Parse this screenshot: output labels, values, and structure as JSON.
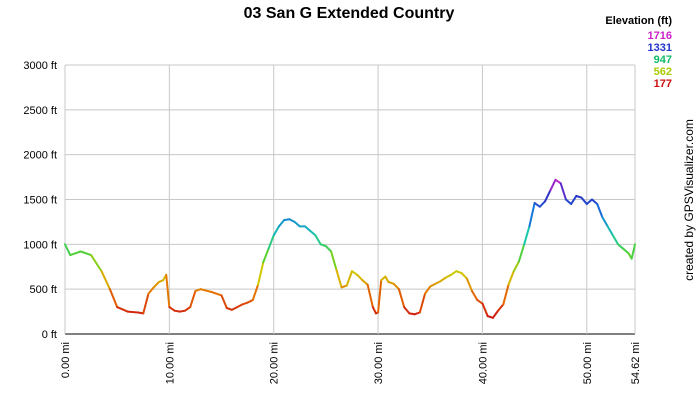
{
  "chart_data": {
    "type": "line",
    "title": "03 San G Extended Country",
    "xlabel": "",
    "ylabel": "",
    "xlim": [
      0,
      54.62
    ],
    "ylim": [
      0,
      3000
    ],
    "grid": true,
    "x_ticks": [
      {
        "value": 0,
        "label": "0.00 mi"
      },
      {
        "value": 10,
        "label": "10.00 mi"
      },
      {
        "value": 20,
        "label": "20.00 mi"
      },
      {
        "value": 30,
        "label": "30.00 mi"
      },
      {
        "value": 40,
        "label": "40.00 mi"
      },
      {
        "value": 50,
        "label": "50.00 mi"
      },
      {
        "value": 54.62,
        "label": "54.62 mi"
      }
    ],
    "y_ticks": [
      {
        "value": 0,
        "label": "0 ft"
      },
      {
        "value": 500,
        "label": "500 ft"
      },
      {
        "value": 1000,
        "label": "1000 ft"
      },
      {
        "value": 1500,
        "label": "1500 ft"
      },
      {
        "value": 2000,
        "label": "2000 ft"
      },
      {
        "value": 2500,
        "label": "2500 ft"
      },
      {
        "value": 3000,
        "label": "3000 ft"
      }
    ],
    "legend": {
      "title": "Elevation (ft)",
      "position": "top-right",
      "entries": [
        {
          "label": "1716",
          "color": "#cc22cc"
        },
        {
          "label": "1331",
          "color": "#2233cc"
        },
        {
          "label": "947",
          "color": "#11bb66"
        },
        {
          "label": "562",
          "color": "#aacc00"
        },
        {
          "label": "177",
          "color": "#cc1111"
        }
      ]
    },
    "color_scale": {
      "min": 177,
      "max": 1716
    },
    "series": [
      {
        "x": [
          0,
          0.5,
          1.5,
          2.5,
          3.5,
          4.3,
          5.0,
          6.0,
          7.0,
          7.5,
          8.0,
          8.5,
          9.0,
          9.4,
          9.7,
          10.0,
          10.5,
          11.0,
          11.5,
          12.0,
          12.5,
          13.0,
          14.0,
          15.0,
          15.5,
          16.0,
          16.5,
          17.0,
          17.5,
          18.0,
          18.5,
          19.0,
          19.5,
          20.0,
          20.5,
          21.0,
          21.5,
          22.0,
          22.5,
          23.0,
          23.5,
          24.0,
          24.5,
          25.0,
          25.5,
          26.0,
          26.5,
          27.0,
          27.5,
          28.0,
          28.5,
          29.0,
          29.5,
          29.8,
          30.0,
          30.3,
          30.7,
          31.0,
          31.5,
          32.0,
          32.5,
          33.0,
          33.5,
          34.0,
          34.5,
          35.0,
          35.5,
          36.0,
          36.5,
          37.0,
          37.5,
          38.0,
          38.5,
          39.0,
          39.5,
          40.0,
          40.5,
          41.0,
          41.5,
          42.0,
          42.5,
          43.0,
          43.5,
          44.0,
          44.5,
          45.0,
          45.5,
          46.0,
          46.5,
          47.0,
          47.5,
          48.0,
          48.5,
          49.0,
          49.5,
          50.0,
          50.5,
          51.0,
          51.5,
          52.0,
          52.5,
          53.0,
          53.5,
          54.0,
          54.3,
          54.62
        ],
        "y": [
          1000,
          880,
          920,
          880,
          700,
          500,
          300,
          250,
          240,
          230,
          450,
          520,
          580,
          600,
          660,
          300,
          260,
          250,
          260,
          300,
          480,
          500,
          470,
          430,
          290,
          270,
          300,
          330,
          350,
          380,
          550,
          800,
          950,
          1100,
          1200,
          1270,
          1280,
          1250,
          1200,
          1200,
          1150,
          1100,
          1000,
          980,
          920,
          720,
          520,
          540,
          700,
          660,
          600,
          550,
          300,
          230,
          240,
          600,
          640,
          580,
          560,
          500,
          300,
          230,
          220,
          240,
          450,
          530,
          560,
          590,
          630,
          660,
          700,
          680,
          620,
          480,
          380,
          340,
          200,
          180,
          260,
          330,
          550,
          700,
          810,
          1000,
          1200,
          1460,
          1420,
          1480,
          1600,
          1720,
          1680,
          1500,
          1450,
          1540,
          1520,
          1450,
          1500,
          1450,
          1300,
          1200,
          1100,
          1000,
          950,
          900,
          840,
          1000
        ]
      }
    ]
  },
  "credit": "created by GPSVisualizer.com"
}
